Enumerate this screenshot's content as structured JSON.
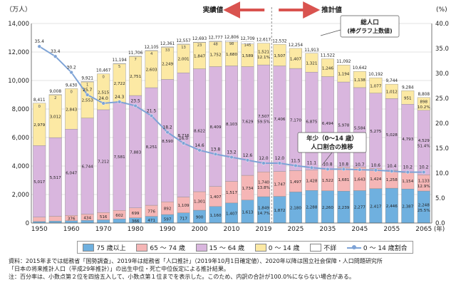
{
  "chart_data": {
    "type": "stacked-bar-with-line",
    "y_unit_left": "（万人）",
    "y_unit_right": "(%)",
    "ylim_left": [
      0,
      14000
    ],
    "ylim_right": [
      0,
      40
    ],
    "y_ticks_left": [
      "0",
      "2,000",
      "4,000",
      "6,000",
      "8,000",
      "10,000",
      "12,000",
      "14,000"
    ],
    "y_ticks_right": [
      "0.0",
      "5.0",
      "10.0",
      "15.0",
      "20.0",
      "25.0",
      "30.0",
      "35.0",
      "40.0"
    ],
    "x_tick_labels": [
      "1950",
      "1960",
      "1970",
      "1980",
      "1990",
      "2000",
      "2010",
      "2019",
      "2025",
      "2035",
      "2045",
      "2055",
      "2065"
    ],
    "x_axis_suffix": "(年)",
    "header_actual": "実績値",
    "header_projected": "推計値",
    "callout_total": "総人口",
    "callout_total_sub": "(棒グラフ上数値)",
    "callout_child": "年少（0～14 歳）",
    "callout_child_sub": "人口割合の推移",
    "colors": {
      "age75": "#6fb0df",
      "age65_74": "#f5b6b6",
      "age15_64": "#d9b6de",
      "age0_14": "#fce9a4",
      "unknown": "#ffffff",
      "line": "#7ea3d6"
    },
    "bars": [
      {
        "year": "1950",
        "total": "8,411",
        "age75": "107",
        "age65_74": "309",
        "age15_64": "5,017",
        "age0_14": "2,979",
        "age0_14_pct": "",
        "unknown": "0",
        "age75_v": 107,
        "age65_74_v": 309,
        "age15_64_v": 5017,
        "age0_14_v": 2979,
        "unknown_v": 0
      },
      {
        "year": "1955",
        "total": "9,008",
        "age75": "139",
        "age65_74": "338",
        "age15_64": "5,517",
        "age0_14": "3,012",
        "age0_14_pct": "",
        "unknown": "2",
        "age75_v": 139,
        "age65_74_v": 338,
        "age15_64_v": 5517,
        "age0_14_v": 3012,
        "unknown_v": 2
      },
      {
        "year": "1960",
        "total": "9,430",
        "age75": "163",
        "age65_74": "376",
        "age15_64": "6,047",
        "age0_14": "2,843",
        "age0_14_pct": "",
        "unknown": "0",
        "age75_v": 163,
        "age65_74_v": 376,
        "age15_64_v": 6047,
        "age0_14_v": 2843,
        "unknown_v": 0
      },
      {
        "year": "1965",
        "total": "9,921",
        "age75": "189",
        "age65_74": "434",
        "age15_64": "6,744",
        "age0_14": "2,553",
        "age0_14_pct": "",
        "unknown": "1",
        "age75_v": 189,
        "age65_74_v": 434,
        "age15_64_v": 6744,
        "age0_14_v": 2553,
        "unknown_v": 1
      },
      {
        "year": "1970",
        "total": "10,467",
        "age75": "224",
        "age65_74": "516",
        "age15_64": "7,212",
        "age0_14": "2,515",
        "age0_14_pct": "",
        "unknown": "0",
        "age75_v": 224,
        "age65_74_v": 516,
        "age15_64_v": 7212,
        "age0_14_v": 2515,
        "unknown_v": 0
      },
      {
        "year": "1975",
        "total": "11,194",
        "age75": "284",
        "age65_74": "602",
        "age15_64": "7,581",
        "age0_14": "2,722",
        "age0_14_pct": "",
        "unknown": "5",
        "age75_v": 284,
        "age65_74_v": 602,
        "age15_64_v": 7581,
        "age0_14_v": 2722,
        "unknown_v": 5
      },
      {
        "year": "1980",
        "total": "11,706",
        "age75": "366",
        "age65_74": "699",
        "age15_64": "7,883",
        "age0_14": "2,751",
        "age0_14_pct": "",
        "unknown": "7",
        "age75_v": 366,
        "age65_74_v": 699,
        "age15_64_v": 7883,
        "age0_14_v": 2751,
        "unknown_v": 7
      },
      {
        "year": "1985",
        "total": "12,105",
        "age75": "471",
        "age65_74": "776",
        "age15_64": "8,251",
        "age0_14": "2,603",
        "age0_14_pct": "",
        "unknown": "4",
        "age75_v": 471,
        "age65_74_v": 776,
        "age15_64_v": 8251,
        "age0_14_v": 2603,
        "unknown_v": 4
      },
      {
        "year": "1990",
        "total": "12,361",
        "age75": "597",
        "age65_74": "892",
        "age15_64": "8,590",
        "age0_14": "2,249",
        "age0_14_pct": "",
        "unknown": "33",
        "age75_v": 597,
        "age65_74_v": 892,
        "age15_64_v": 8590,
        "age0_14_v": 2249,
        "unknown_v": 33
      },
      {
        "year": "1995",
        "total": "12,557",
        "age75": "717",
        "age65_74": "1,109",
        "age15_64": "8,716",
        "age0_14": "2,001",
        "age0_14_pct": "",
        "unknown": "13",
        "age75_v": 717,
        "age65_74_v": 1109,
        "age15_64_v": 8716,
        "age0_14_v": 2001,
        "unknown_v": 13
      },
      {
        "year": "2000",
        "total": "12,693",
        "age75": "900",
        "age65_74": "1,301",
        "age15_64": "8,622",
        "age0_14": "1,847",
        "age0_14_pct": "",
        "unknown": "23",
        "age75_v": 900,
        "age65_74_v": 1301,
        "age15_64_v": 8622,
        "age0_14_v": 1847,
        "unknown_v": 23
      },
      {
        "year": "2005",
        "total": "12,777",
        "age75": "1,160",
        "age65_74": "1,407",
        "age15_64": "8,409",
        "age0_14": "1,752",
        "age0_14_pct": "",
        "unknown": "48",
        "age75_v": 1160,
        "age65_74_v": 1407,
        "age15_64_v": 8409,
        "age0_14_v": 1752,
        "unknown_v": 48
      },
      {
        "year": "2010",
        "total": "12,806",
        "age75": "1,407",
        "age65_74": "1,517",
        "age15_64": "8,103",
        "age0_14": "1,680",
        "age0_14_pct": "",
        "unknown": "98",
        "age75_v": 1407,
        "age65_74_v": 1517,
        "age15_64_v": 8103,
        "age0_14_v": 1680,
        "unknown_v": 98
      },
      {
        "year": "2015",
        "total": "12,709",
        "age75": "1,613",
        "age65_74": "1,734",
        "age15_64": "7,629",
        "age0_14": "1,589",
        "age0_14_pct": "",
        "unknown": "145",
        "age75_v": 1613,
        "age65_74_v": 1734,
        "age15_64_v": 7629,
        "age0_14_v": 1589,
        "unknown_v": 145
      },
      {
        "year": "2019",
        "total": "12,617",
        "age75": "1,849\n14.7%",
        "age65_74": "1,740\n13.8%",
        "age15_64": "7,507\n59.5%",
        "age0_14": "1,521\n12.1%",
        "age0_14_pct": "",
        "unknown": "",
        "age75_v": 1849,
        "age65_74_v": 1740,
        "age15_64_v": 7507,
        "age0_14_v": 1521,
        "unknown_v": 0
      },
      {
        "year": "2020",
        "total": "12,532",
        "age75": "1,872",
        "age65_74": "1,747",
        "age15_64": "7,406",
        "age0_14": "1,507",
        "age0_14_pct": "",
        "unknown": "",
        "age75_v": 1872,
        "age65_74_v": 1747,
        "age15_64_v": 7406,
        "age0_14_v": 1507,
        "unknown_v": 0
      },
      {
        "year": "2025",
        "total": "12,254",
        "age75": "2,180",
        "age65_74": "1,497",
        "age15_64": "7,170",
        "age0_14": "1,407",
        "age0_14_pct": "",
        "unknown": "",
        "age75_v": 2180,
        "age65_74_v": 1497,
        "age15_64_v": 7170,
        "age0_14_v": 1407,
        "unknown_v": 0
      },
      {
        "year": "2030",
        "total": "11,913",
        "age75": "2,288",
        "age65_74": "1,428",
        "age15_64": "6,875",
        "age0_14": "1,321",
        "age0_14_pct": "",
        "unknown": "",
        "age75_v": 2288,
        "age65_74_v": 1428,
        "age15_64_v": 6875,
        "age0_14_v": 1321,
        "unknown_v": 0
      },
      {
        "year": "2035",
        "total": "11,522",
        "age75": "2,260",
        "age65_74": "1,522",
        "age15_64": "6,494",
        "age0_14": "1,246",
        "age0_14_pct": "",
        "unknown": "",
        "age75_v": 2260,
        "age65_74_v": 1522,
        "age15_64_v": 6494,
        "age0_14_v": 1246,
        "unknown_v": 0
      },
      {
        "year": "2040",
        "total": "11,092",
        "age75": "2,239",
        "age65_74": "1,681",
        "age15_64": "5,978",
        "age0_14": "1,194",
        "age0_14_pct": "",
        "unknown": "",
        "age75_v": 2239,
        "age65_74_v": 1681,
        "age15_64_v": 5978,
        "age0_14_v": 1194,
        "unknown_v": 0
      },
      {
        "year": "2045",
        "total": "10,642",
        "age75": "2,277",
        "age65_74": "1,643",
        "age15_64": "5,584",
        "age0_14": "1,138",
        "age0_14_pct": "",
        "unknown": "",
        "age75_v": 2277,
        "age65_74_v": 1643,
        "age15_64_v": 5584,
        "age0_14_v": 1138,
        "unknown_v": 0
      },
      {
        "year": "2050",
        "total": "10,192",
        "age75": "2,417",
        "age65_74": "1,424",
        "age15_64": "5,275",
        "age0_14": "1,077",
        "age0_14_pct": "",
        "unknown": "",
        "age75_v": 2417,
        "age65_74_v": 1424,
        "age15_64_v": 5275,
        "age0_14_v": 1077,
        "unknown_v": 0
      },
      {
        "year": "2055",
        "total": "9,744",
        "age75": "2,446",
        "age65_74": "1,258",
        "age15_64": "5,028",
        "age0_14": "1,012",
        "age0_14_pct": "",
        "unknown": "",
        "age75_v": 2446,
        "age65_74_v": 1258,
        "age15_64_v": 5028,
        "age0_14_v": 1012,
        "unknown_v": 0
      },
      {
        "year": "2060",
        "total": "9,284",
        "age75": "2,387",
        "age65_74": "1,154",
        "age15_64": "4,793",
        "age0_14": "951",
        "age0_14_pct": "",
        "unknown": "",
        "age75_v": 2387,
        "age65_74_v": 1154,
        "age15_64_v": 4793,
        "age0_14_v": 951,
        "unknown_v": 0
      },
      {
        "year": "2065",
        "total": "8,808",
        "age75": "2,248\n25.5%",
        "age65_74": "1,133\n12.9%",
        "age15_64": "4,529\n51.4%",
        "age0_14": "898\n10.2%",
        "age0_14_pct": "",
        "unknown": "",
        "age75_v": 2248,
        "age65_74_v": 1133,
        "age15_64_v": 4529,
        "age0_14_v": 898,
        "unknown_v": 0
      }
    ],
    "child_share_pct": [
      35.4,
      33.4,
      30.2,
      25.7,
      24.0,
      24.3,
      23.5,
      21.5,
      18.2,
      16.0,
      14.6,
      13.8,
      13.2,
      12.6,
      12.0,
      12.0,
      11.5,
      11.1,
      10.8,
      10.8,
      10.7,
      10.6,
      10.4,
      10.2,
      10.2
    ],
    "child_share_labels": [
      "35.4",
      "33.4",
      "30.2",
      "25.7",
      "24.0",
      "24.3",
      "23.5",
      "21.5",
      "18.2",
      "16.0",
      "14.6",
      "13.8",
      "13.2",
      "12.6",
      "12.0",
      "12.0",
      "11.5",
      "11.1",
      "10.8",
      "10.8",
      "10.7",
      "10.6",
      "10.4",
      "10.2",
      "10.2"
    ]
  },
  "legend": {
    "age75": "75 歳以上",
    "age65_74": "65 ～ 74 歳",
    "age15_64": "15 ～ 64 歳",
    "age0_14": "0 ～ 14 歳",
    "unknown": "不詳",
    "line": "0 ～ 14 歳割合"
  },
  "notes": {
    "line1": "資料：2015年までは総務省「国勢調査」、2019年は総務省「人口推計」（2019年10月1日確定値）、2020年以降は国立社会保障・人口問題研究所",
    "line2": "「日本の将来推計人口（平成29年推計）」の出生中位・死亡中位仮定による推計結果。",
    "line3": "注：百分率は、小数点第２位を四捨五入して、小数点第１位までを表示した。このため、内訳の合計が100.0%にならない場合がある。"
  }
}
